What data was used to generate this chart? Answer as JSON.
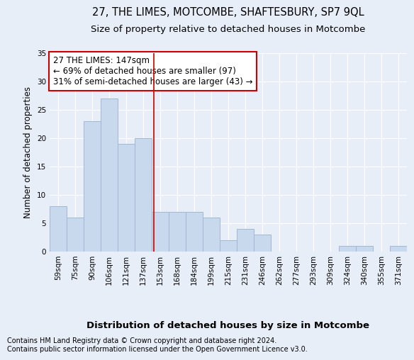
{
  "title": "27, THE LIMES, MOTCOMBE, SHAFTESBURY, SP7 9QL",
  "subtitle": "Size of property relative to detached houses in Motcombe",
  "xlabel": "Distribution of detached houses by size in Motcombe",
  "ylabel": "Number of detached properties",
  "bins": [
    "59sqm",
    "75sqm",
    "90sqm",
    "106sqm",
    "121sqm",
    "137sqm",
    "153sqm",
    "168sqm",
    "184sqm",
    "199sqm",
    "215sqm",
    "231sqm",
    "246sqm",
    "262sqm",
    "277sqm",
    "293sqm",
    "309sqm",
    "324sqm",
    "340sqm",
    "355sqm",
    "371sqm"
  ],
  "values": [
    8,
    6,
    23,
    27,
    19,
    20,
    7,
    7,
    7,
    6,
    2,
    4,
    3,
    0,
    0,
    0,
    0,
    1,
    1,
    0,
    1
  ],
  "bar_color": "#c8d9ed",
  "bar_edge_color": "#a0b8d8",
  "ref_line_color": "#cc0000",
  "annotation_text": "27 THE LIMES: 147sqm\n← 69% of detached houses are smaller (97)\n31% of semi-detached houses are larger (43) →",
  "annotation_box_color": "white",
  "annotation_box_edge": "#cc0000",
  "ylim": [
    0,
    35
  ],
  "yticks": [
    0,
    5,
    10,
    15,
    20,
    25,
    30,
    35
  ],
  "footer1": "Contains HM Land Registry data © Crown copyright and database right 2024.",
  "footer2": "Contains public sector information licensed under the Open Government Licence v3.0.",
  "bg_color": "#e8eef8",
  "title_fontsize": 10.5,
  "subtitle_fontsize": 9.5,
  "ylabel_fontsize": 8.5,
  "xlabel_fontsize": 9.5,
  "tick_fontsize": 7.5,
  "annotation_fontsize": 8.5,
  "footer_fontsize": 7.0
}
